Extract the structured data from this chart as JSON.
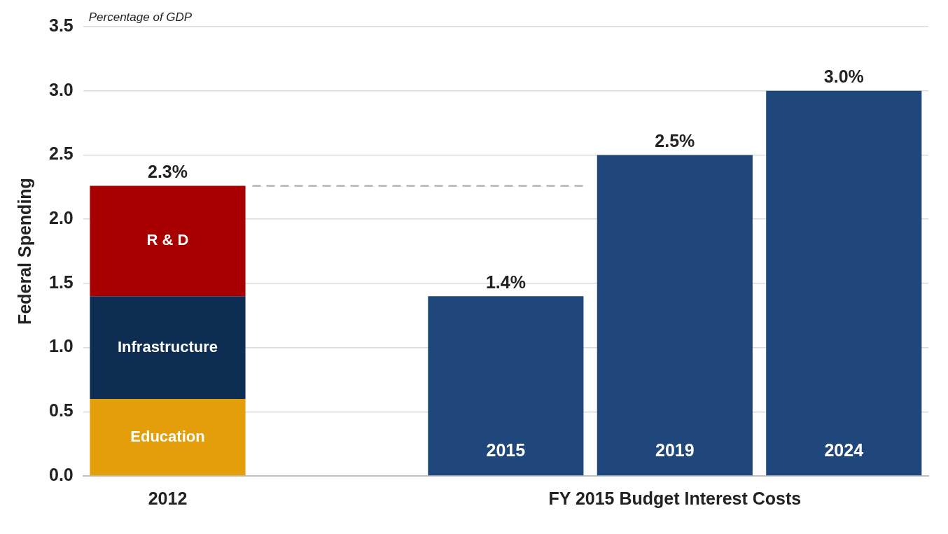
{
  "chart_data": {
    "type": "bar",
    "subtitle": "Percentage of GDP",
    "ylabel": "Federal Spending",
    "categories": [
      "2012",
      null,
      "2015",
      "2019",
      "2024"
    ],
    "series": [
      {
        "name": "Education",
        "color": "#e39e0a",
        "values": [
          0.6,
          null,
          null,
          null,
          null
        ]
      },
      {
        "name": "Infrastructure",
        "color": "#0d2e52",
        "values": [
          0.8,
          null,
          null,
          null,
          null
        ]
      },
      {
        "name": "R & D",
        "color": "#a80000",
        "values": [
          0.86,
          null,
          null,
          null,
          null
        ]
      },
      {
        "color": "#1f477b",
        "values": [
          null,
          null,
          1.4,
          2.5,
          3.0
        ]
      }
    ],
    "stacked": true,
    "totals": [
      "2.3%",
      null,
      "1.4%",
      "2.5%",
      "3.0%"
    ],
    "ylim": [
      0,
      3.5
    ],
    "yticks": [
      {
        "value": 0,
        "label": "0.0"
      },
      {
        "value": 0.5,
        "label": "0.5"
      },
      {
        "value": 1,
        "label": "1.0"
      },
      {
        "value": 1.5,
        "label": "1.5"
      },
      {
        "value": 2,
        "label": "2.0"
      },
      {
        "value": 2.5,
        "label": "2.5"
      },
      {
        "value": 3,
        "label": "3.0"
      },
      {
        "value": 3.5,
        "label": "3.5"
      }
    ],
    "grid": "y",
    "legend": false,
    "ref_lines": [
      {
        "axis": "y",
        "value": 2.26,
        "color": "#bfbfbf",
        "line_style": "dashed"
      }
    ],
    "annotations": [
      "FY 2015 Budget Interest Costs"
    ]
  }
}
